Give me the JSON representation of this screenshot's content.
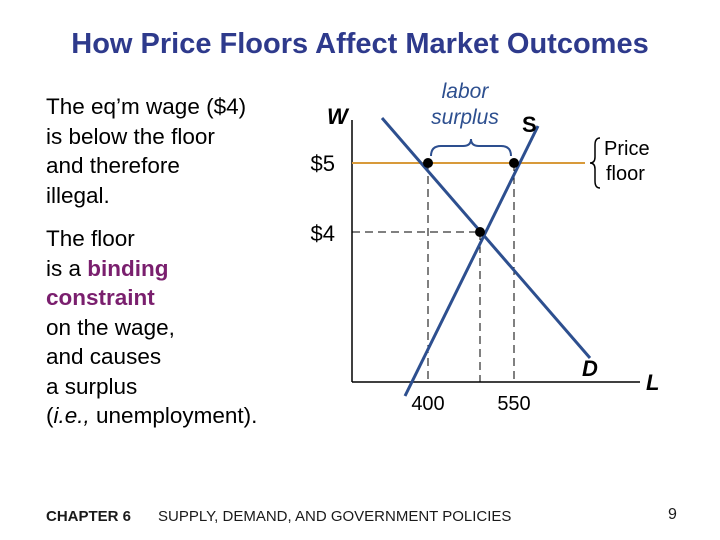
{
  "slide": {
    "title": "How Price Floors Affect Market Outcomes",
    "paragraph1": [
      "The eq’m wage ($4)",
      "is below the floor",
      "and therefore",
      "illegal."
    ],
    "paragraph2": {
      "line1": "The floor",
      "line2_pre": "is a ",
      "binding_word": "binding",
      "constraint_word": "constraint",
      "line4": "on the wage,",
      "line5": "and causes",
      "line6": "a surplus",
      "line7_italic": "i.e.,",
      "line7_rest": " unemployment)."
    }
  },
  "diagram": {
    "y_axis_label": "W",
    "x_axis_label": "L",
    "supply_label": "S",
    "demand_label": "D",
    "floor_price_label": "$5",
    "eq_price_label": "$4",
    "quantity_demanded_label": "400",
    "quantity_supplied_label": "550",
    "surplus_label_line1": "labor",
    "surplus_label_line2": "surplus",
    "price_floor_label_line1": "Price",
    "price_floor_label_line2": "floor",
    "colors": {
      "curves": "#2d4f8f",
      "floor_line": "#d89a3a",
      "axes": "#000000"
    }
  },
  "footer": {
    "chapter": "CHAPTER 6",
    "text": "SUPPLY, DEMAND, AND GOVERNMENT POLICIES",
    "page": "9"
  }
}
